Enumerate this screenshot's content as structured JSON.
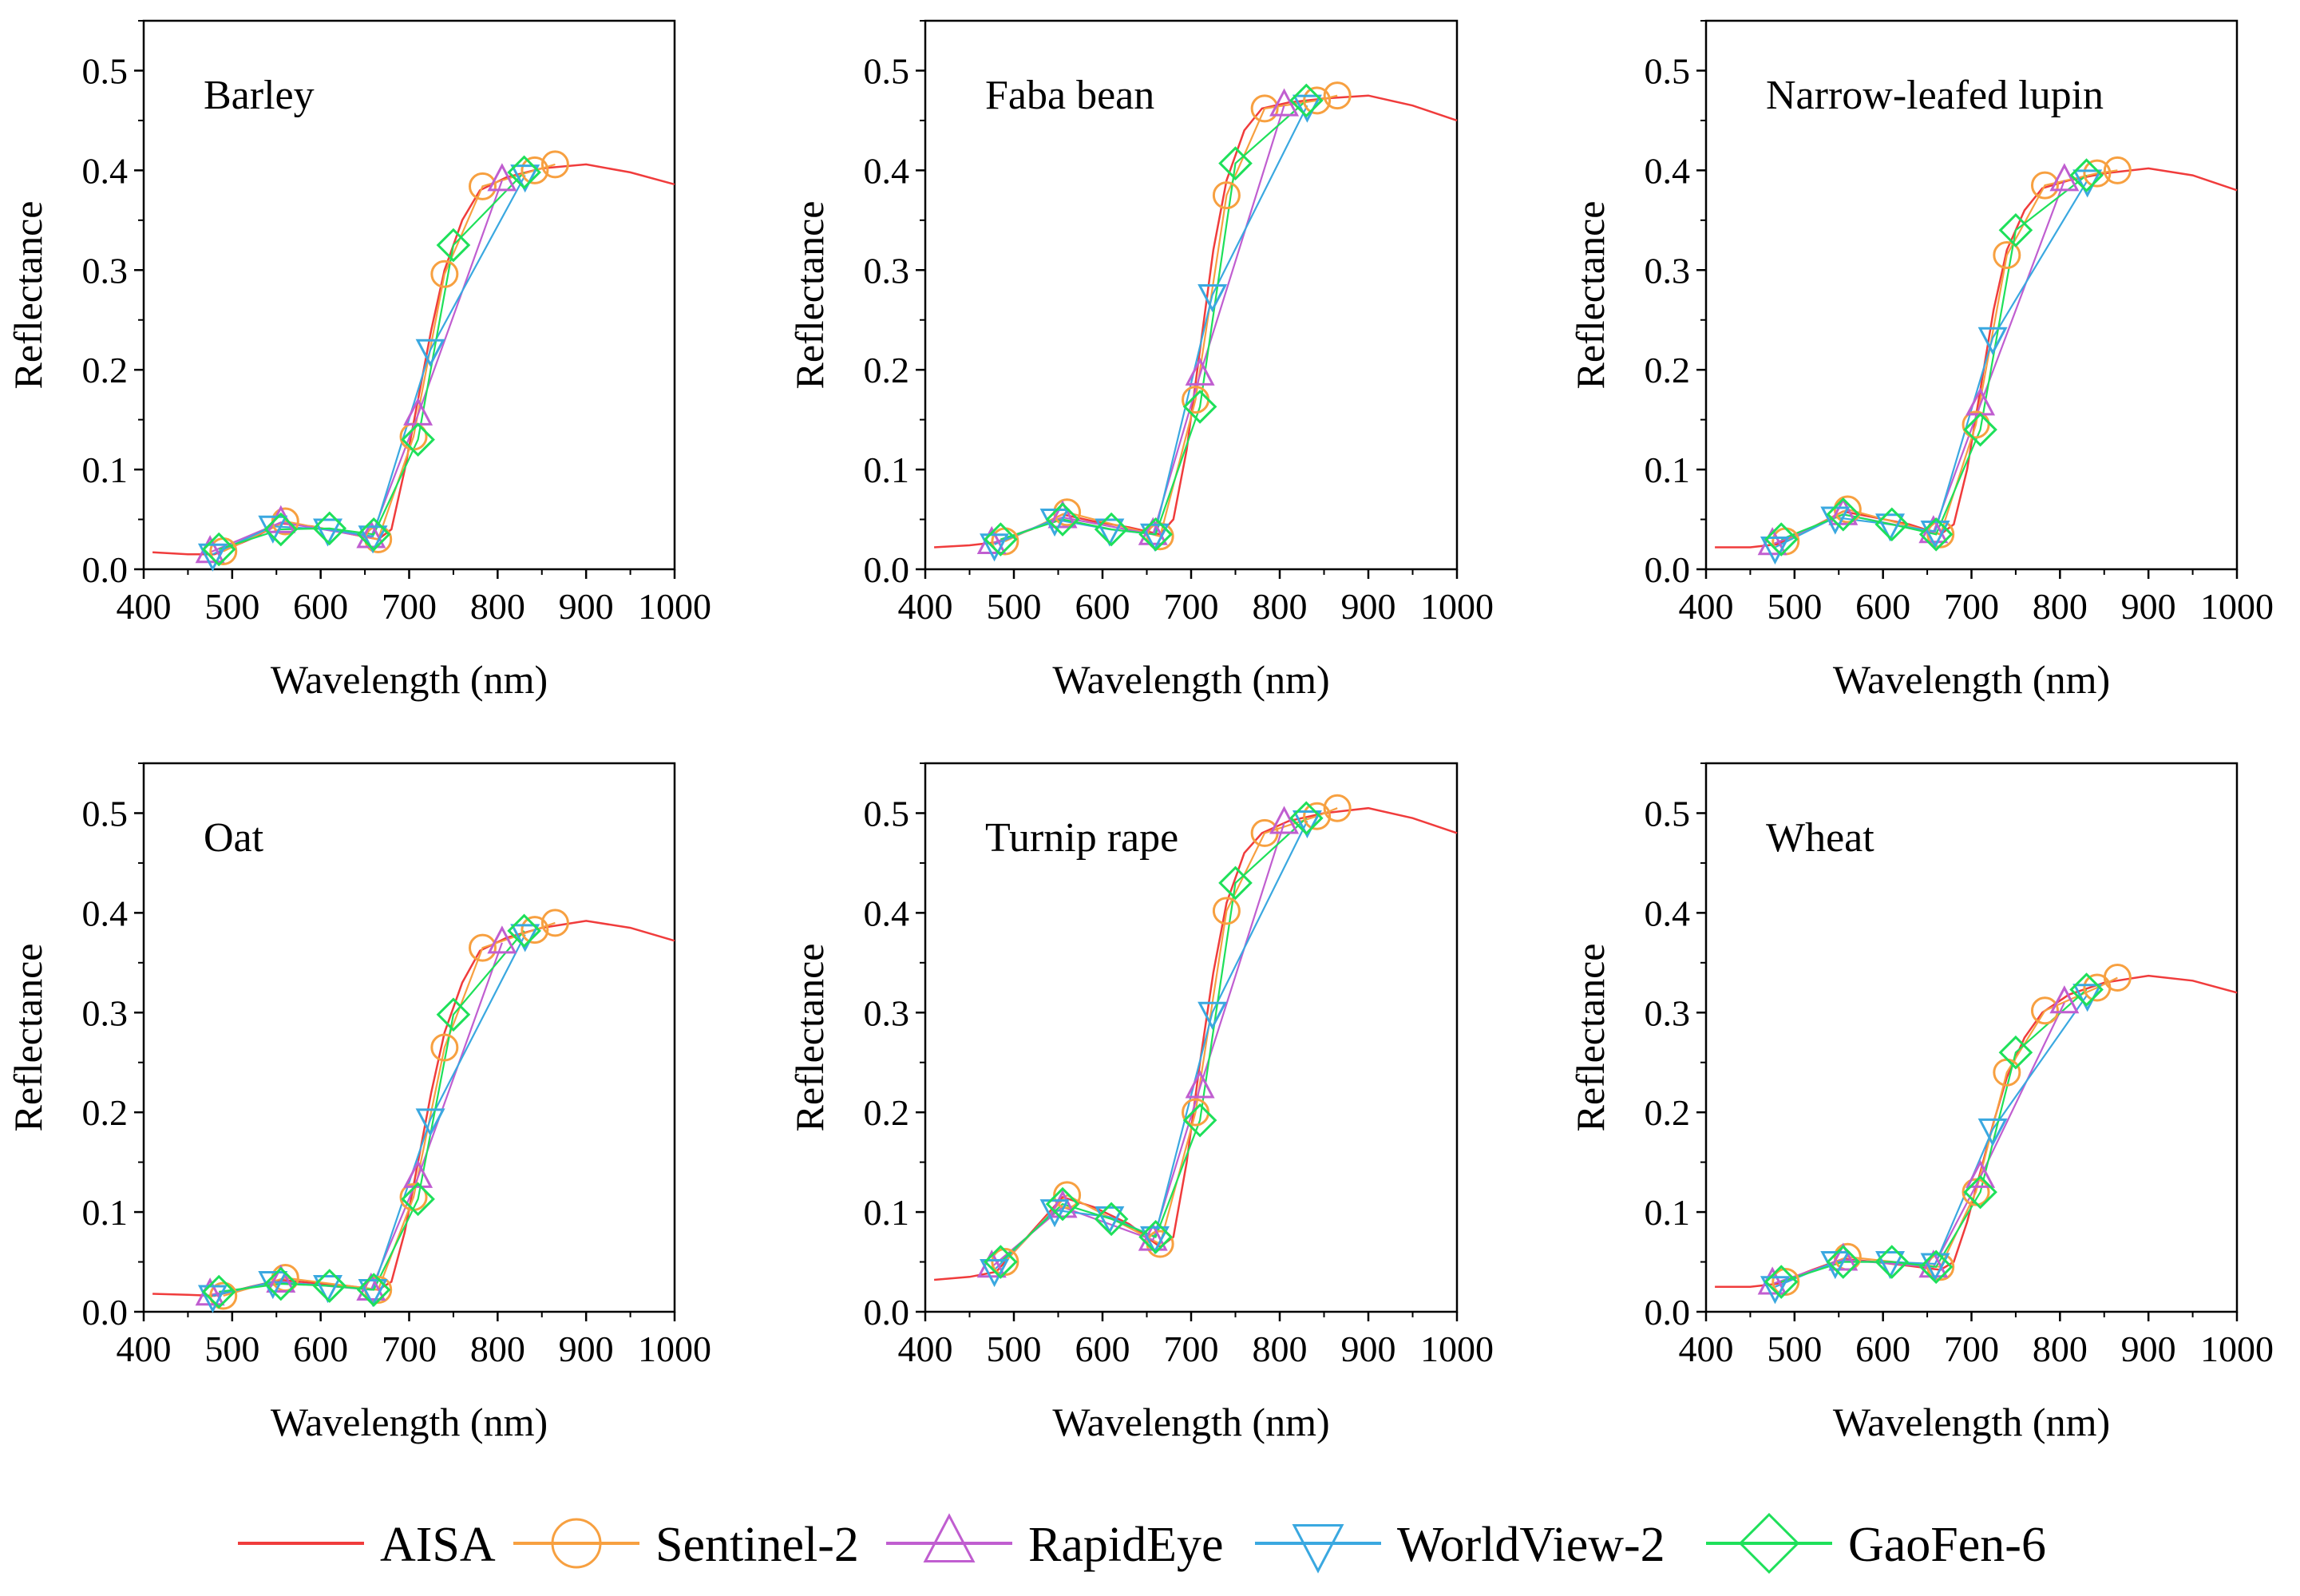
{
  "chart_data": [
    {
      "type": "line",
      "title": "Barley"
    },
    {
      "type": "line",
      "title": "Faba bean"
    },
    {
      "type": "line",
      "title": "Narrow-leafed lupin"
    },
    {
      "type": "line",
      "title": "Oat"
    },
    {
      "type": "line",
      "title": "Turnip rape"
    },
    {
      "type": "line",
      "title": "Wheat"
    }
  ],
  "shared": {
    "xlabel": "Wavelength (nm)",
    "ylabel": "Reflectance",
    "xlim": [
      400,
      1000
    ],
    "ylim": [
      0,
      0.55
    ],
    "xticks": [
      400,
      500,
      600,
      700,
      800,
      900,
      1000
    ],
    "xtick_labels": [
      "400",
      "500",
      "600",
      "700",
      "800",
      "900",
      "1000"
    ],
    "yticks": [
      0,
      0.1,
      0.2,
      0.3,
      0.4,
      0.5
    ],
    "ytick_labels": [
      "0.0",
      "0.1",
      "0.2",
      "0.3",
      "0.4",
      "0.5"
    ],
    "grid": false,
    "legend_placement": "bottom"
  },
  "series_meta": [
    {
      "name": "AISA",
      "color": "#f03c3c",
      "marker": "none",
      "x": [
        410,
        450,
        480,
        520,
        555,
        590,
        630,
        665,
        680,
        695,
        710,
        725,
        740,
        760,
        780,
        810,
        850,
        900,
        950,
        1000
      ]
    },
    {
      "name": "Sentinel-2",
      "color": "#f7a040",
      "marker": "circle",
      "x": [
        490,
        560,
        665,
        705,
        740,
        783,
        842,
        865
      ]
    },
    {
      "name": "RapidEye",
      "color": "#c05ed0",
      "marker": "triangle-up",
      "x": [
        475,
        555,
        657,
        710,
        805
      ]
    },
    {
      "name": "WorldView-2",
      "color": "#3aa8e0",
      "marker": "triangle-down",
      "x": [
        478,
        546,
        608,
        659,
        724,
        831
      ]
    },
    {
      "name": "GaoFen-6",
      "color": "#1ee05a",
      "marker": "diamond",
      "x": [
        485,
        555,
        610,
        660,
        710,
        750,
        830
      ]
    }
  ],
  "values": {
    "Barley": [
      [
        0.017,
        0.015,
        0.015,
        0.03,
        0.046,
        0.043,
        0.036,
        0.03,
        0.04,
        0.1,
        0.17,
        0.24,
        0.3,
        0.35,
        0.38,
        0.393,
        0.402,
        0.406,
        0.398,
        0.386
      ],
      [
        0.018,
        0.048,
        0.03,
        0.133,
        0.296,
        0.384,
        0.4,
        0.406
      ],
      [
        0.017,
        0.047,
        0.032,
        0.155,
        0.39
      ],
      [
        0.015,
        0.043,
        0.04,
        0.033,
        0.22,
        0.395
      ],
      [
        0.02,
        0.04,
        0.041,
        0.035,
        0.13,
        0.325,
        0.398
      ]
    ],
    "Faba bean": [
      [
        0.022,
        0.024,
        0.027,
        0.04,
        0.055,
        0.048,
        0.042,
        0.035,
        0.05,
        0.12,
        0.22,
        0.32,
        0.39,
        0.44,
        0.462,
        0.468,
        0.472,
        0.475,
        0.465,
        0.45
      ],
      [
        0.028,
        0.057,
        0.033,
        0.17,
        0.375,
        0.462,
        0.47,
        0.475
      ],
      [
        0.026,
        0.052,
        0.035,
        0.195,
        0.465
      ],
      [
        0.025,
        0.05,
        0.04,
        0.035,
        0.275,
        0.465
      ],
      [
        0.03,
        0.05,
        0.04,
        0.035,
        0.163,
        0.407,
        0.47
      ]
    ],
    "Narrow-leafed lupin": [
      [
        0.022,
        0.022,
        0.025,
        0.042,
        0.058,
        0.052,
        0.045,
        0.035,
        0.045,
        0.1,
        0.18,
        0.26,
        0.32,
        0.36,
        0.382,
        0.39,
        0.397,
        0.402,
        0.395,
        0.38
      ],
      [
        0.028,
        0.06,
        0.035,
        0.145,
        0.315,
        0.385,
        0.397,
        0.4
      ],
      [
        0.025,
        0.055,
        0.037,
        0.165,
        0.39
      ],
      [
        0.022,
        0.052,
        0.045,
        0.038,
        0.232,
        0.39
      ],
      [
        0.03,
        0.055,
        0.045,
        0.035,
        0.14,
        0.34,
        0.395
      ]
    ],
    "Oat": [
      [
        0.018,
        0.017,
        0.016,
        0.025,
        0.032,
        0.029,
        0.026,
        0.022,
        0.03,
        0.08,
        0.15,
        0.22,
        0.28,
        0.33,
        0.362,
        0.375,
        0.385,
        0.392,
        0.385,
        0.372
      ],
      [
        0.016,
        0.034,
        0.022,
        0.115,
        0.265,
        0.365,
        0.383,
        0.39
      ],
      [
        0.017,
        0.03,
        0.022,
        0.135,
        0.37
      ],
      [
        0.016,
        0.03,
        0.026,
        0.022,
        0.193,
        0.378
      ],
      [
        0.02,
        0.028,
        0.026,
        0.022,
        0.113,
        0.298,
        0.382
      ]
    ],
    "Turnip rape": [
      [
        0.032,
        0.035,
        0.04,
        0.08,
        0.115,
        0.105,
        0.088,
        0.065,
        0.075,
        0.15,
        0.25,
        0.34,
        0.41,
        0.46,
        0.48,
        0.492,
        0.5,
        0.505,
        0.495,
        0.48
      ],
      [
        0.05,
        0.117,
        0.068,
        0.2,
        0.402,
        0.48,
        0.497,
        0.505
      ],
      [
        0.045,
        0.105,
        0.072,
        0.225,
        0.49
      ],
      [
        0.042,
        0.102,
        0.095,
        0.075,
        0.3,
        0.492
      ],
      [
        0.05,
        0.108,
        0.093,
        0.075,
        0.192,
        0.43,
        0.495
      ]
    ],
    "Wheat": [
      [
        0.025,
        0.025,
        0.028,
        0.042,
        0.053,
        0.05,
        0.046,
        0.042,
        0.05,
        0.09,
        0.14,
        0.19,
        0.235,
        0.275,
        0.3,
        0.318,
        0.33,
        0.337,
        0.332,
        0.32
      ],
      [
        0.03,
        0.055,
        0.045,
        0.12,
        0.24,
        0.302,
        0.325,
        0.335
      ],
      [
        0.028,
        0.052,
        0.045,
        0.135,
        0.31
      ],
      [
        0.025,
        0.05,
        0.05,
        0.048,
        0.183,
        0.318
      ],
      [
        0.03,
        0.05,
        0.05,
        0.045,
        0.12,
        0.26,
        0.323
      ]
    ]
  }
}
